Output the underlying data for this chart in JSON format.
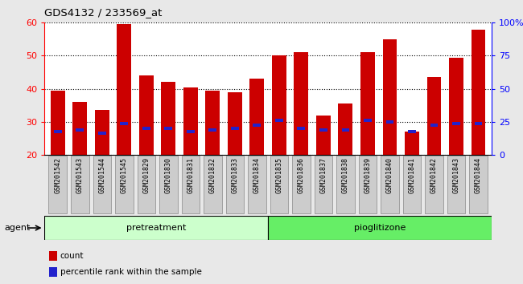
{
  "title": "GDS4132 / 233569_at",
  "categories": [
    "GSM201542",
    "GSM201543",
    "GSM201544",
    "GSM201545",
    "GSM201829",
    "GSM201830",
    "GSM201831",
    "GSM201832",
    "GSM201833",
    "GSM201834",
    "GSM201835",
    "GSM201836",
    "GSM201837",
    "GSM201838",
    "GSM201839",
    "GSM201840",
    "GSM201841",
    "GSM201842",
    "GSM201843",
    "GSM201844"
  ],
  "counts": [
    39.5,
    36.0,
    33.5,
    59.5,
    44.0,
    42.0,
    40.5,
    39.5,
    39.0,
    43.0,
    50.0,
    51.0,
    32.0,
    35.5,
    51.0,
    55.0,
    27.0,
    43.5,
    49.5,
    58.0
  ],
  "percentile_ranks": [
    27.0,
    27.5,
    26.5,
    29.5,
    28.0,
    28.0,
    27.0,
    27.5,
    28.0,
    29.0,
    30.5,
    28.0,
    27.5,
    27.5,
    30.5,
    30.0,
    27.0,
    29.0,
    29.5,
    29.5
  ],
  "n_pretreatment": 10,
  "n_pioglitizone": 10,
  "bar_color": "#cc0000",
  "blue_color": "#2222cc",
  "ymin": 20,
  "ymax": 60,
  "yticks_left": [
    20,
    30,
    40,
    50,
    60
  ],
  "yticks_right_pct": [
    0,
    25,
    50,
    75,
    100
  ],
  "agent_label": "agent",
  "group1_label": "pretreatment",
  "group2_label": "pioglitizone",
  "legend_count": "count",
  "legend_percentile": "percentile rank within the sample",
  "background_color": "#e8e8e8",
  "plot_bg": "#ffffff",
  "group1_bg": "#ccffcc",
  "group2_bg": "#66ee66",
  "xtick_bg": "#cccccc"
}
